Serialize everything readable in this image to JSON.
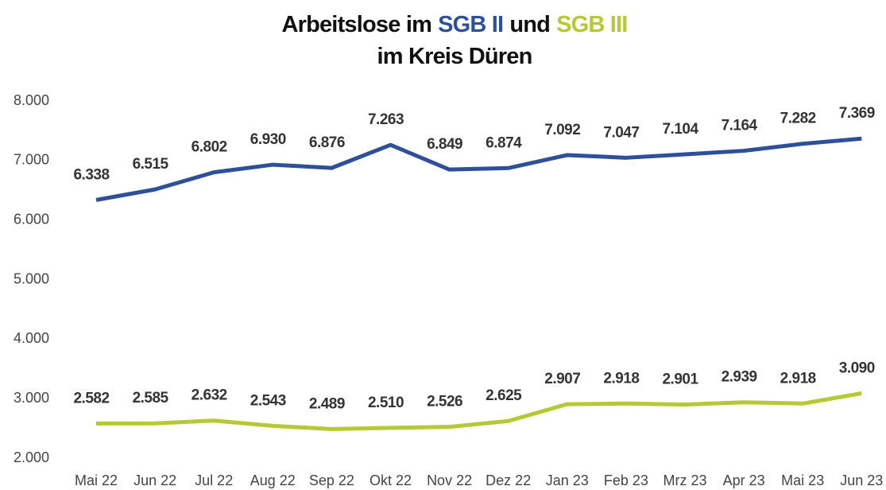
{
  "chart_data": {
    "type": "line",
    "title_lines": [
      [
        {
          "text": "Arbeitslose im"
        },
        {
          "text": "SGB II",
          "color": "#2e4f9a"
        },
        {
          "text": "und"
        },
        {
          "text": "SGB III",
          "color": "#b5c934"
        }
      ],
      [
        {
          "text": "im Kreis Düren"
        }
      ]
    ],
    "categories": [
      "Mai 22",
      "Jun 22",
      "Jul 22",
      "Aug 22",
      "Sep 22",
      "Okt 22",
      "Nov 22",
      "Dez 22",
      "Jan 23",
      "Feb 23",
      "Mrz 23",
      "Apr 23",
      "Mai 23",
      "Jun 23"
    ],
    "series": [
      {
        "color": "#2e4f9a",
        "values": [
          6338,
          6515,
          6802,
          6930,
          6876,
          7263,
          6849,
          6874,
          7092,
          7047,
          7104,
          7164,
          7282,
          7369
        ],
        "value_labels": [
          "6.338",
          "6.515",
          "6.802",
          "6.930",
          "6.876",
          "7.263",
          "6.849",
          "6.874",
          "7.092",
          "7.047",
          "7.104",
          "7.164",
          "7.282",
          "7.369"
        ]
      },
      {
        "color": "#b5c934",
        "values": [
          2582,
          2585,
          2632,
          2543,
          2489,
          2510,
          2526,
          2625,
          2907,
          2918,
          2901,
          2939,
          2918,
          3090
        ],
        "value_labels": [
          "2.582",
          "2.585",
          "2.632",
          "2.543",
          "2.489",
          "2.510",
          "2.526",
          "2.625",
          "2.907",
          "2.918",
          "2.901",
          "2.939",
          "2.918",
          "3.090"
        ]
      }
    ],
    "ylim": [
      2000,
      8000
    ],
    "yticks": [
      {
        "value": 2000,
        "label": "2.000"
      },
      {
        "value": 3000,
        "label": "3.000"
      },
      {
        "value": 4000,
        "label": "4.000"
      },
      {
        "value": 5000,
        "label": "5.000"
      },
      {
        "value": 6000,
        "label": "6.000"
      },
      {
        "value": 7000,
        "label": "7.000"
      },
      {
        "value": 8000,
        "label": "8.000"
      }
    ],
    "grid": false
  }
}
